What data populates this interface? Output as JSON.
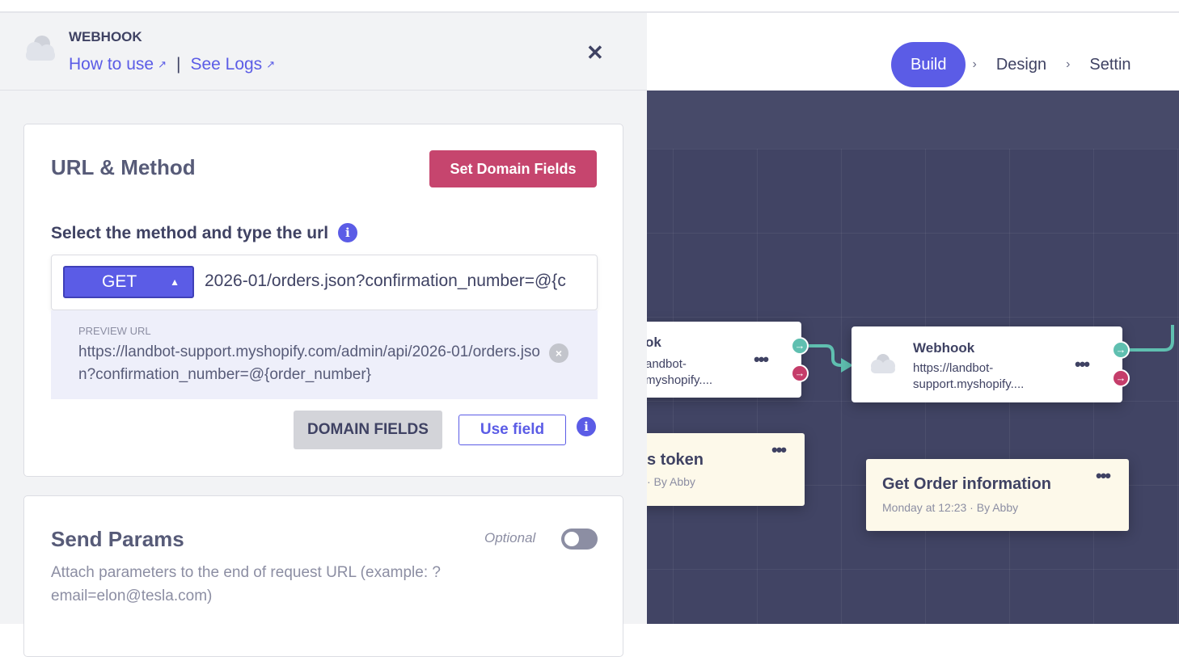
{
  "panel": {
    "title": "WEBHOOK",
    "how_to_use": "How to use",
    "see_logs": "See Logs",
    "separator": "|",
    "close": "✕"
  },
  "url_method": {
    "title": "URL & Method",
    "set_domain_fields": "Set Domain Fields",
    "select_label": "Select the method and type the url",
    "method": "GET",
    "url_value": "2026-01/orders.json?confirmation_number=@{c",
    "preview_label": "PREVIEW URL",
    "preview_url": "https://landbot-support.myshopify.com/admin/api/2026-01/orders.json?confirmation_number=@{order_number}",
    "domain_fields": "DOMAIN FIELDS",
    "use_field": "Use field"
  },
  "send_params": {
    "title": "Send Params",
    "optional": "Optional",
    "enabled": false,
    "description": "Attach parameters to the end of request URL (example: ?email=elon@tesla.com)"
  },
  "nav": {
    "steps": [
      "Build",
      "Design",
      "Settin"
    ],
    "active": "Build",
    "accent": "#5b5ce6"
  },
  "canvas": {
    "node1": {
      "title": "ok",
      "url_line1": "andbot-",
      "url_line2": "myshopify...."
    },
    "node2": {
      "title": "Webhook",
      "url_line1": "https://landbot-",
      "url_line2": "support.myshopify...."
    },
    "note1": {
      "title": "s token",
      "meta": "· By Abby"
    },
    "note2": {
      "title": "Get Order information",
      "meta": "Monday at 12:23 · By Abby"
    },
    "menu": "•••"
  }
}
